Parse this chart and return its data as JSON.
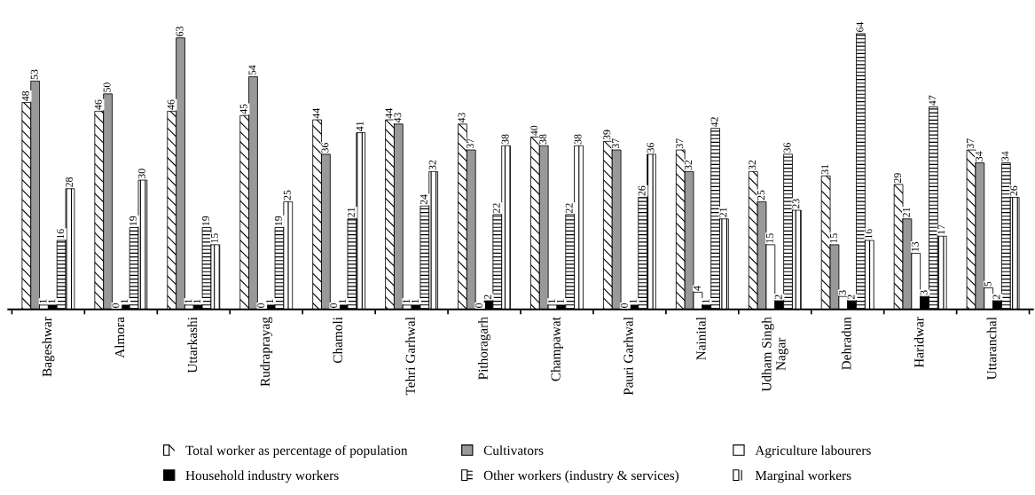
{
  "chart_data": {
    "type": "bar",
    "categories": [
      "Bageshwar",
      "Almora",
      "Uttarkashi",
      "Rudraprayag",
      "Chamoli",
      "Tehri Garhwal",
      "Pithoragarh",
      "Champawat",
      "Pauri Garhwal",
      "Nainital",
      "Udham Singh\nNagar",
      "Dehradun",
      "Haridwar",
      "Uttaranchal"
    ],
    "series": [
      {
        "name": "Total worker as percentage of population",
        "color": "#ffffff",
        "values": [
          48,
          46,
          46,
          45,
          44,
          44,
          43,
          40,
          39,
          37,
          32,
          31,
          29,
          37
        ]
      },
      {
        "name": "Cultivators",
        "color": "#999999",
        "values": [
          53,
          50,
          63,
          54,
          36,
          43,
          37,
          38,
          37,
          32,
          25,
          15,
          21,
          34
        ]
      },
      {
        "name": "Agriculture labourers",
        "color": "#ffffff",
        "values": [
          1,
          0,
          1,
          0,
          0,
          1,
          0,
          1,
          0,
          4,
          15,
          3,
          13,
          5
        ]
      },
      {
        "name": "Household industry workers",
        "color": "#000000",
        "values": [
          1,
          1,
          1,
          1,
          1,
          1,
          2,
          1,
          1,
          1,
          2,
          2,
          3,
          2
        ]
      },
      {
        "name": "Other workers (industry & services)",
        "color": "#ffffff",
        "values": [
          16,
          19,
          19,
          19,
          21,
          24,
          22,
          22,
          26,
          42,
          36,
          64,
          47,
          34
        ]
      },
      {
        "name": "Marginal workers",
        "color": "#ffffff",
        "values": [
          28,
          30,
          15,
          25,
          41,
          32,
          38,
          38,
          36,
          21,
          23,
          16,
          17,
          26
        ]
      }
    ],
    "data_labels": true,
    "grid": false,
    "legend": "bottom",
    "tick_labels": "x"
  }
}
